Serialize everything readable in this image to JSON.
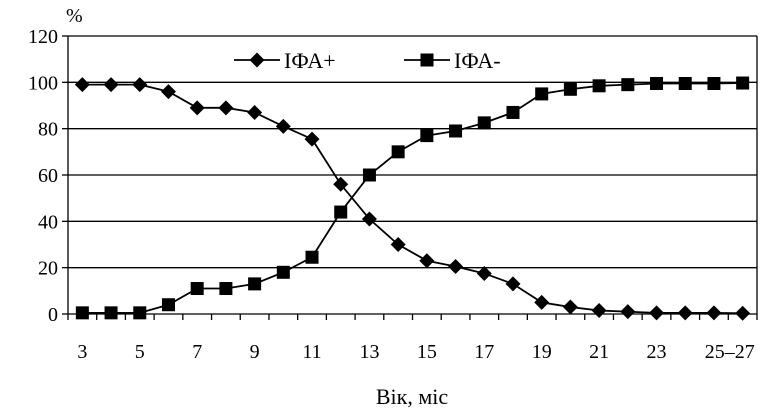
{
  "chart_data": {
    "type": "line",
    "title": "",
    "xlabel": "Вік, міс",
    "ylabel": "%",
    "ylim": [
      0,
      120
    ],
    "yticks": [
      "0",
      "20",
      "40",
      "60",
      "80",
      "100",
      "120"
    ],
    "x": [
      "3",
      "4",
      "5",
      "6",
      "7",
      "8",
      "9",
      "10",
      "11",
      "12",
      "13",
      "14",
      "15",
      "16",
      "17",
      "18",
      "19",
      "20",
      "21",
      "22",
      "23",
      "24",
      "25",
      "26"
    ],
    "xtick_labels": [
      "3",
      "5",
      "7",
      "9",
      "11",
      "13",
      "15",
      "17",
      "19",
      "21",
      "23",
      "25–27"
    ],
    "grid": "horizontal",
    "legend_position": "top",
    "series": [
      {
        "name": "ІФА+",
        "marker": "diamond",
        "color": "#000000",
        "values": [
          99,
          99,
          99,
          96,
          89,
          89,
          87,
          81,
          75.5,
          56,
          41,
          30,
          23,
          20.5,
          17.5,
          13,
          5,
          3,
          1.5,
          1,
          0.5,
          0.5,
          0.5,
          0.3
        ]
      },
      {
        "name": "ІФА-",
        "marker": "square",
        "color": "#000000",
        "values": [
          0.5,
          0.5,
          0.5,
          4,
          11,
          11,
          13,
          18,
          24.5,
          44,
          60,
          70,
          77,
          79,
          82.5,
          87,
          95,
          97,
          98.5,
          99,
          99.5,
          99.5,
          99.5,
          99.7
        ]
      }
    ]
  }
}
